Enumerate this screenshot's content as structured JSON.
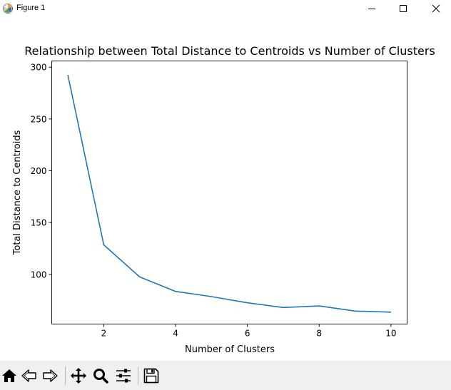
{
  "window": {
    "title": "Figure 1",
    "icons": {
      "app": "matplotlib-icon",
      "minimize": "minimize-icon",
      "maximize": "maximize-icon",
      "close": "close-icon"
    }
  },
  "toolbar": {
    "buttons": [
      {
        "name": "home-icon",
        "tooltip": "Home"
      },
      {
        "name": "back-arrow-icon",
        "tooltip": "Back"
      },
      {
        "name": "forward-arrow-icon",
        "tooltip": "Forward"
      },
      {
        "name": "pan-icon",
        "tooltip": "Pan"
      },
      {
        "name": "zoom-icon",
        "tooltip": "Zoom"
      },
      {
        "name": "configure-subplots-icon",
        "tooltip": "Subplots"
      },
      {
        "name": "save-icon",
        "tooltip": "Save"
      }
    ]
  },
  "chart_data": {
    "type": "line",
    "title": "Relationship between Total Distance to Centroids vs Number of Clusters",
    "xlabel": "Number of Clusters",
    "ylabel": "Total Distance to Centroids",
    "x": [
      1,
      2,
      3,
      4,
      5,
      6,
      7,
      8,
      9,
      10
    ],
    "series": [
      {
        "values": [
          292.5,
          128.5,
          97.5,
          83.5,
          78.5,
          72.5,
          68.0,
          69.5,
          64.5,
          63.5
        ],
        "color": "#1f77b4"
      }
    ],
    "xlim": [
      0.55,
      10.45
    ],
    "ylim": [
      52,
      306
    ],
    "xticks": [
      2,
      4,
      6,
      8,
      10
    ],
    "yticks": [
      100,
      150,
      200,
      250,
      300
    ],
    "grid": false,
    "legend": "none"
  }
}
